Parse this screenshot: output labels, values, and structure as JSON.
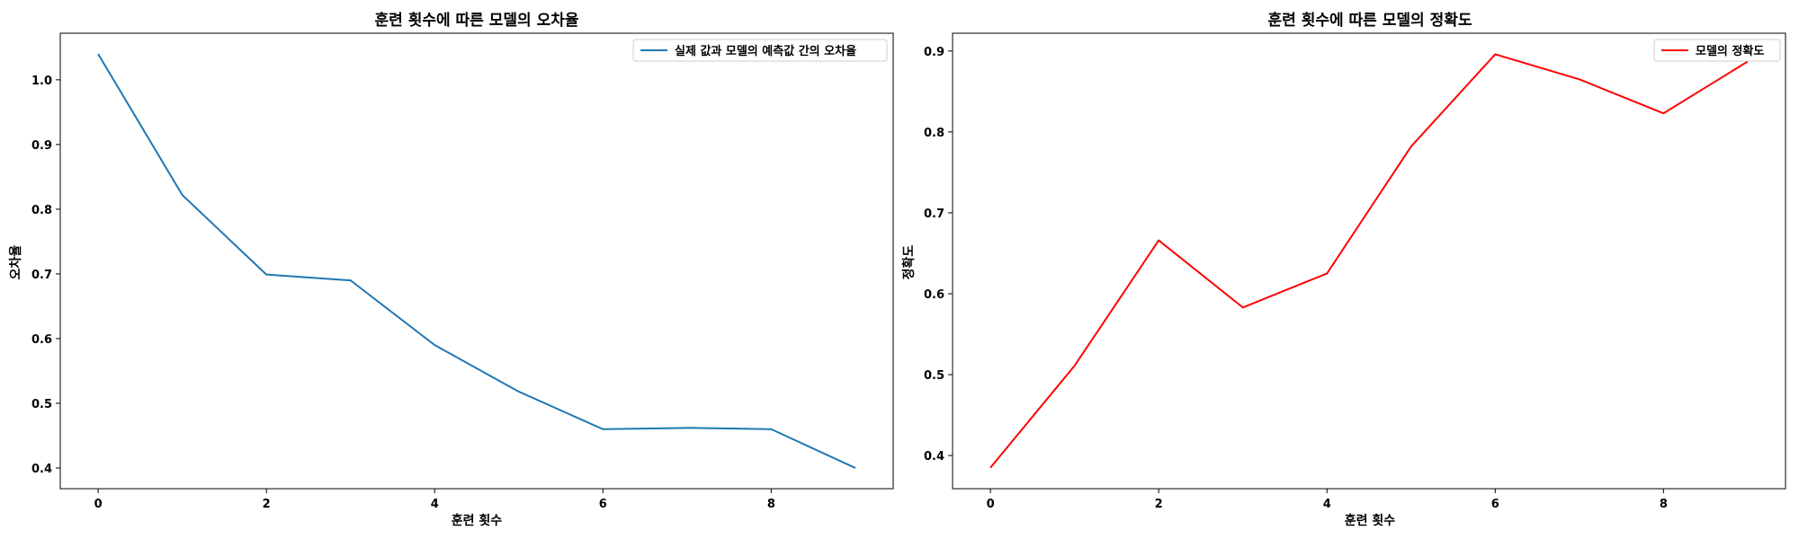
{
  "chart_data": [
    {
      "type": "line",
      "title": "훈련 횟수에 따른 모델의 오차율",
      "xlabel": "훈련 횟수",
      "ylabel": "오차율",
      "x": [
        0,
        1,
        2,
        3,
        4,
        5,
        6,
        7,
        8,
        9
      ],
      "series": [
        {
          "name": "실제 값과 모델의 예측값 간의 오차율",
          "color": "#1f77b4",
          "values": [
            1.04,
            0.822,
            0.699,
            0.69,
            0.59,
            0.518,
            0.46,
            0.462,
            0.46,
            0.4
          ]
        }
      ],
      "xlim": [
        -0.45,
        9.45
      ],
      "ylim": [
        0.368,
        1.072
      ],
      "xticks": [
        0,
        2,
        4,
        6,
        8
      ],
      "yticks": [
        0.4,
        0.5,
        0.6,
        0.7,
        0.8,
        0.9,
        1.0
      ],
      "xtick_labels": [
        "0",
        "2",
        "4",
        "6",
        "8"
      ],
      "ytick_labels": [
        "0.4",
        "0.5",
        "0.6",
        "0.7",
        "0.8",
        "0.9",
        "1.0"
      ],
      "grid": false,
      "legend_position": "top-right"
    },
    {
      "type": "line",
      "title": "훈련 횟수에 따른 모델의 정확도",
      "xlabel": "훈련 횟수",
      "ylabel": "정확도",
      "x": [
        0,
        1,
        2,
        3,
        4,
        5,
        6,
        7,
        8,
        9
      ],
      "series": [
        {
          "name": "모델의 정확도",
          "color": "#ff0000",
          "values": [
            0.385,
            0.511,
            0.666,
            0.583,
            0.625,
            0.782,
            0.896,
            0.865,
            0.823,
            0.887
          ]
        }
      ],
      "xlim": [
        -0.45,
        9.45
      ],
      "ylim": [
        0.359,
        0.922
      ],
      "xticks": [
        0,
        2,
        4,
        6,
        8
      ],
      "yticks": [
        0.4,
        0.5,
        0.6,
        0.7,
        0.8,
        0.9
      ],
      "xtick_labels": [
        "0",
        "2",
        "4",
        "6",
        "8"
      ],
      "ytick_labels": [
        "0.4",
        "0.5",
        "0.6",
        "0.7",
        "0.8",
        "0.9"
      ],
      "grid": false,
      "legend_position": "top-right"
    }
  ]
}
